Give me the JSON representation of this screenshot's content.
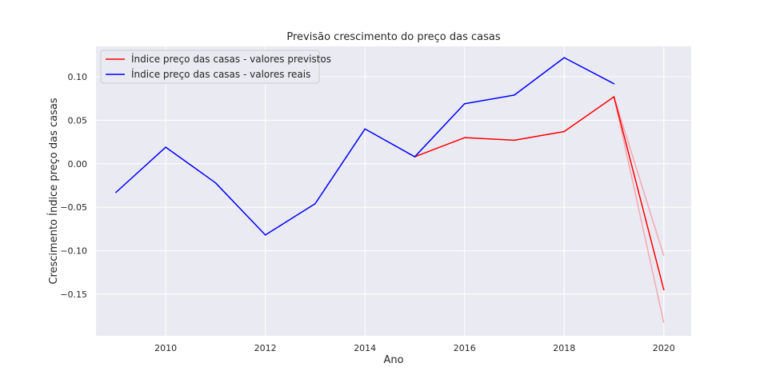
{
  "chart_data": {
    "type": "line",
    "title": "Previsão crescimento do preço das casas",
    "xlabel": "Ano",
    "ylabel": "Crescimento Índice preço das casas",
    "xlim": [
      2008.6,
      2020.55
    ],
    "ylim": [
      -0.198,
      0.135
    ],
    "x_ticks": [
      2010,
      2012,
      2014,
      2016,
      2018,
      2020
    ],
    "y_ticks": [
      -0.15,
      -0.1,
      -0.05,
      0.0,
      0.05,
      0.1
    ],
    "x_tick_labels": [
      "2010",
      "2012",
      "2014",
      "2016",
      "2018",
      "2020"
    ],
    "y_tick_labels": [
      "−0.15",
      "−0.10",
      "−0.05",
      "0.00",
      "0.05",
      "0.10"
    ],
    "grid": true,
    "legend_position": "upper-left",
    "series": [
      {
        "name": "Índice preço das casas - valores previstos",
        "color": "#ff0000",
        "x": [
          2015,
          2016,
          2017,
          2018,
          2019,
          2020
        ],
        "y": [
          0.008,
          0.03,
          0.027,
          0.037,
          0.077,
          -0.145
        ]
      },
      {
        "name": "Índice preço das casas - valores reais",
        "color": "#0000ff",
        "x": [
          2009,
          2010,
          2011,
          2012,
          2013,
          2014,
          2015,
          2016,
          2017,
          2018,
          2019
        ],
        "y": [
          -0.033,
          0.019,
          -0.022,
          -0.082,
          -0.046,
          0.04,
          0.008,
          0.069,
          0.079,
          0.122,
          0.092
        ]
      }
    ],
    "confidence_band": {
      "color": "#f4a7b0",
      "x": [
        2019,
        2020
      ],
      "upper": [
        0.077,
        -0.106
      ],
      "lower": [
        0.077,
        -0.183
      ]
    }
  }
}
